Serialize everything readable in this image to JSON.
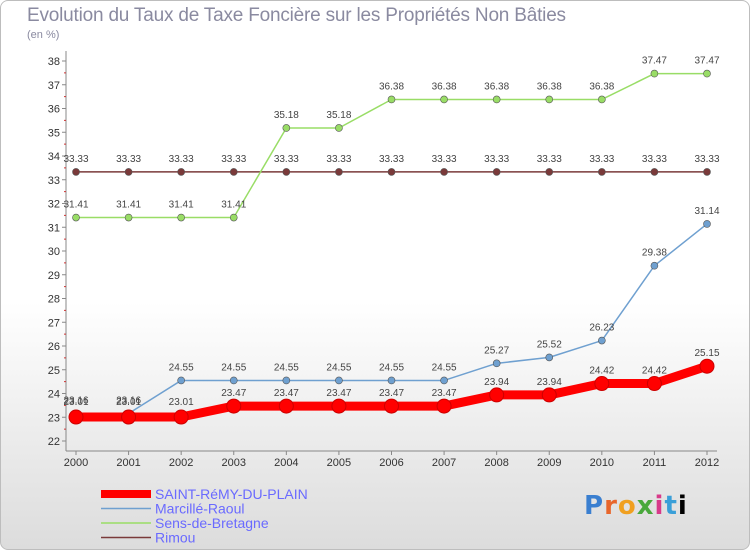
{
  "chart_data": {
    "type": "line",
    "title": "Evolution du Taux de Taxe Foncière sur les Propriétés Non Bâties",
    "subtitle": "(en %)",
    "x": [
      "2000",
      "2001",
      "2002",
      "2003",
      "2004",
      "2005",
      "2006",
      "2007",
      "2008",
      "2009",
      "2010",
      "2011",
      "2012"
    ],
    "ylim": [
      22,
      38
    ],
    "yticks": [
      "22",
      "23",
      "24",
      "25",
      "26",
      "27",
      "28",
      "29",
      "30",
      "31",
      "32",
      "33",
      "34",
      "35",
      "36",
      "37",
      "38"
    ],
    "grid": false,
    "legend_position": "bottom-left",
    "series": [
      {
        "name": "SAINT-RéMY-DU-PLAIN",
        "color": "#ff0000",
        "values": [
          23.01,
          23.01,
          23.01,
          23.47,
          23.47,
          23.47,
          23.47,
          23.47,
          23.94,
          23.94,
          24.42,
          24.42,
          25.15
        ],
        "labels": [
          "23.01",
          "23.01",
          "23.01",
          "23.47",
          "23.47",
          "23.47",
          "23.47",
          "23.47",
          "23.94",
          "23.94",
          "24.42",
          "24.42",
          "25.15"
        ]
      },
      {
        "name": "Marcillé-Raoul",
        "color": "#6fa0d0",
        "values": [
          23.16,
          23.16,
          24.55,
          24.55,
          24.55,
          24.55,
          24.55,
          24.55,
          25.27,
          25.52,
          26.23,
          29.38,
          31.14
        ],
        "labels": [
          "23.16",
          "23.16",
          "24.55",
          "24.55",
          "24.55",
          "24.55",
          "24.55",
          "24.55",
          "25.27",
          "25.52",
          "26.23",
          "29.38",
          "31.14"
        ]
      },
      {
        "name": "Sens-de-Bretagne",
        "color": "#99dd66",
        "values": [
          31.41,
          31.41,
          31.41,
          31.41,
          35.18,
          35.18,
          36.38,
          36.38,
          36.38,
          36.38,
          36.38,
          37.47,
          37.47
        ],
        "labels": [
          "31.41",
          "31.41",
          "31.41",
          "31.41",
          "35.18",
          "35.18",
          "36.38",
          "36.38",
          "36.38",
          "36.38",
          "36.38",
          "37.47",
          "37.47"
        ]
      },
      {
        "name": "Rimou",
        "color": "#7a3a3a",
        "values": [
          33.33,
          33.33,
          33.33,
          33.33,
          33.33,
          33.33,
          33.33,
          33.33,
          33.33,
          33.33,
          33.33,
          33.33,
          33.33
        ],
        "labels": [
          "33.33",
          "33.33",
          "33.33",
          "33.33",
          "33.33",
          "33.33",
          "33.33",
          "33.33",
          "33.33",
          "33.33",
          "33.33",
          "33.33",
          "33.33"
        ]
      }
    ]
  },
  "brand": {
    "letters": [
      "P",
      "r",
      "o",
      "x",
      "i",
      "t",
      "i"
    ]
  }
}
